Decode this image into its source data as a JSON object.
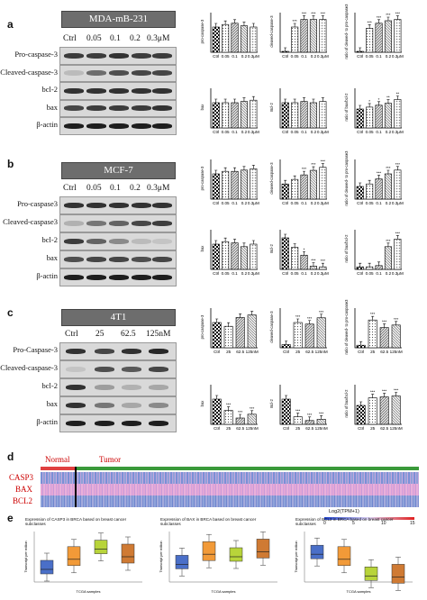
{
  "panels": {
    "a": {
      "letter": "a",
      "cell": "MDA-mB-231",
      "lanes": [
        "Ctrl",
        "0.05",
        "0.1",
        "0.2",
        "0.3μM"
      ],
      "rows": [
        "Pro-caspase-3",
        "Cleaved-caspase-3",
        "bcl-2",
        "bax",
        "β-actin"
      ]
    },
    "b": {
      "letter": "b",
      "cell": "MCF-7",
      "lanes": [
        "Ctrl",
        "0.05",
        "0.1",
        "0.2",
        "0.3μM"
      ],
      "rows": [
        "Pro-caspase3",
        "Cleaved-caspase3",
        "bcl-2",
        "bax",
        "β-actin"
      ]
    },
    "c": {
      "letter": "c",
      "cell": "4T1",
      "lanes": [
        "Ctrl",
        "25",
        "62.5",
        "125nM"
      ],
      "rows": [
        "Pro-Caspase-3",
        "Cleaved-caspase-3",
        "bcl-2",
        "bax",
        "β-actin"
      ]
    }
  },
  "heatmap": {
    "letter": "d",
    "normal": "Normal",
    "tumor": "Tumor",
    "genes": [
      "CASP3",
      "BAX",
      "BCL2"
    ],
    "legend_title": "Log2(TPM+1)",
    "legend_ticks": [
      "0",
      "5",
      "10",
      "15"
    ]
  },
  "boxplots": {
    "letter": "e",
    "titles": [
      "Expression of CASP3 in BRCA based on breast cancer subclasses",
      "Expression of BAX in BRCA based on breast cancer subclasses",
      "Expression of BCL2 in BRCA based on breast cancer subclasses"
    ],
    "xlabel": "TCGA samples",
    "ylabel": "Transcript per million"
  },
  "chart_data": [
    {
      "type": "bar",
      "panel": "a",
      "ylabel": "pro-caspase-3",
      "categories": [
        "Ctrl",
        "0.05",
        "0.1",
        "0.2",
        "0.3μM"
      ],
      "values": [
        1.0,
        1.1,
        1.15,
        1.05,
        1.0
      ],
      "ylim": [
        0,
        1.5
      ],
      "sig": [
        "",
        "",
        "",
        "",
        ""
      ]
    },
    {
      "type": "bar",
      "panel": "a",
      "ylabel": "cleaved-caspase-3",
      "categories": [
        "Ctrl",
        "0.05",
        "0.1",
        "0.2",
        "0.3μM"
      ],
      "values": [
        0,
        1.0,
        1.3,
        1.3,
        1.3
      ],
      "ylim": [
        0,
        1.5
      ],
      "sig": [
        "",
        "***",
        "***",
        "***",
        "***"
      ]
    },
    {
      "type": "bar",
      "panel": "a",
      "ylabel": "ratio of cleaved- to pro-caspase3",
      "categories": [
        "Ctrl",
        "0.05",
        "0.1",
        "0.2",
        "0.3μM"
      ],
      "values": [
        0,
        0.95,
        1.15,
        1.25,
        1.3
      ],
      "ylim": [
        0,
        1.5
      ],
      "sig": [
        "",
        "***",
        "***",
        "***",
        "***"
      ]
    },
    {
      "type": "bar",
      "panel": "a",
      "ylabel": "bax",
      "categories": [
        "Ctrl",
        "0.05",
        "0.1",
        "0.2",
        "0.3μM"
      ],
      "values": [
        1.0,
        1.0,
        1.0,
        1.05,
        1.1
      ],
      "ylim": [
        0,
        1.5
      ],
      "sig": [
        "",
        "",
        "",
        "",
        ""
      ]
    },
    {
      "type": "bar",
      "panel": "a",
      "ylabel": "Bcl-2",
      "categories": [
        "Ctrl",
        "0.05",
        "0.1",
        "0.2",
        "0.3μM"
      ],
      "values": [
        1.0,
        1.0,
        1.05,
        1.0,
        1.05
      ],
      "ylim": [
        0,
        1.5
      ],
      "sig": [
        "",
        "",
        "",
        "",
        ""
      ]
    },
    {
      "type": "bar",
      "panel": "a",
      "ylabel": "ratio of bax/bcl-2",
      "categories": [
        "Ctrl",
        "0.05",
        "0.1",
        "0.2",
        "0.3μM"
      ],
      "values": [
        1.0,
        1.1,
        1.2,
        1.3,
        1.5
      ],
      "ylim": [
        0,
        2
      ],
      "sig": [
        "",
        "*",
        "*",
        "**",
        "**"
      ]
    },
    {
      "type": "bar",
      "panel": "b",
      "ylabel": "pro-caspase-3",
      "categories": [
        "Ctrl",
        "0.05",
        "0.1",
        "0.2",
        "0.3μM"
      ],
      "values": [
        1.0,
        1.1,
        1.1,
        1.15,
        1.2
      ],
      "ylim": [
        0,
        1.5
      ],
      "sig": [
        "",
        "",
        "",
        "",
        ""
      ]
    },
    {
      "type": "bar",
      "panel": "b",
      "ylabel": "cleaved-caspase-3",
      "categories": [
        "Ctrl",
        "0.05",
        "0.1",
        "0.2",
        "0.3μM"
      ],
      "values": [
        1.0,
        1.3,
        1.6,
        1.9,
        2.1
      ],
      "ylim": [
        0,
        2.5
      ],
      "sig": [
        "",
        "",
        "***",
        "***",
        "***"
      ]
    },
    {
      "type": "bar",
      "panel": "b",
      "ylabel": "ratio of cleaved- to pro-caspase3",
      "categories": [
        "Ctrl",
        "0.05",
        "0.1",
        "0.2",
        "0.3μM"
      ],
      "values": [
        1.0,
        1.2,
        1.6,
        2.0,
        2.3
      ],
      "ylim": [
        0,
        3
      ],
      "sig": [
        "",
        "",
        "***",
        "***",
        "***"
      ]
    },
    {
      "type": "bar",
      "panel": "b",
      "ylabel": "bax",
      "categories": [
        "Ctrl",
        "0.05",
        "0.1",
        "0.2",
        "0.3μM"
      ],
      "values": [
        1.0,
        1.1,
        1.05,
        0.9,
        1.0
      ],
      "ylim": [
        0,
        1.5
      ],
      "sig": [
        "",
        "",
        "",
        "",
        ""
      ]
    },
    {
      "type": "bar",
      "panel": "b",
      "ylabel": "Bcl-2",
      "categories": [
        "Ctrl",
        "0.05",
        "0.1",
        "0.2",
        "0.3μM"
      ],
      "values": [
        1.0,
        0.7,
        0.45,
        0.1,
        0.08
      ],
      "ylim": [
        0,
        1.2
      ],
      "sig": [
        "",
        "",
        "*",
        "***",
        "***"
      ]
    },
    {
      "type": "bar",
      "panel": "b",
      "ylabel": "ratio of bax/bcl-2",
      "categories": [
        "Ctrl",
        "0.05",
        "0.1",
        "0.2",
        "0.3μM"
      ],
      "values": [
        1.0,
        1.0,
        1.5,
        9.0,
        12.0
      ],
      "ylim": [
        0,
        15
      ],
      "sig": [
        "",
        "",
        "",
        "***",
        "***"
      ]
    },
    {
      "type": "bar",
      "panel": "c",
      "ylabel": "pro-caspase-3",
      "categories": [
        "Ctrl",
        "25",
        "62.5",
        "125nM"
      ],
      "values": [
        1.0,
        0.85,
        1.2,
        1.3
      ],
      "ylim": [
        0,
        1.5
      ],
      "sig": [
        "",
        "",
        "",
        ""
      ]
    },
    {
      "type": "bar",
      "panel": "c",
      "ylabel": "cleaved-caspase-3",
      "categories": [
        "Ctrl",
        "25",
        "62.5",
        "125nM"
      ],
      "values": [
        0.1,
        0.8,
        0.75,
        0.95
      ],
      "ylim": [
        0,
        1.2
      ],
      "sig": [
        "",
        "***",
        "***",
        "***"
      ]
    },
    {
      "type": "bar",
      "panel": "c",
      "ylabel": "ratio of cleaved- to pro-caspase3",
      "categories": [
        "Ctrl",
        "25",
        "62.5",
        "125nM"
      ],
      "values": [
        1,
        11,
        8,
        9
      ],
      "ylim": [
        0,
        15
      ],
      "sig": [
        "",
        "***",
        "***",
        "***"
      ]
    },
    {
      "type": "bar",
      "panel": "c",
      "ylabel": "bax",
      "categories": [
        "Ctrl",
        "25",
        "62.5",
        "125nM"
      ],
      "values": [
        1.0,
        0.55,
        0.25,
        0.4
      ],
      "ylim": [
        0,
        1.5
      ],
      "sig": [
        "",
        "***",
        "***",
        "***"
      ]
    },
    {
      "type": "bar",
      "panel": "c",
      "ylabel": "Bcl-2",
      "categories": [
        "Ctrl",
        "25",
        "62.5",
        "125nM"
      ],
      "values": [
        1.0,
        0.3,
        0.15,
        0.2
      ],
      "ylim": [
        0,
        1.5
      ],
      "sig": [
        "",
        "***",
        "***",
        "***"
      ]
    },
    {
      "type": "bar",
      "panel": "c",
      "ylabel": "ratio of bax/bcl-2",
      "categories": [
        "Ctrl",
        "25",
        "62.5",
        "125nM"
      ],
      "values": [
        1.0,
        1.4,
        1.45,
        1.5
      ],
      "ylim": [
        0,
        2
      ],
      "sig": [
        "",
        "***",
        "***",
        "***"
      ]
    }
  ]
}
